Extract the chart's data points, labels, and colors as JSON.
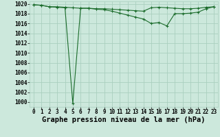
{
  "hours": [
    0,
    1,
    2,
    3,
    4,
    5,
    6,
    7,
    8,
    9,
    10,
    11,
    12,
    13,
    14,
    15,
    16,
    17,
    18,
    19,
    20,
    21,
    22,
    23
  ],
  "line1": [
    1019.8,
    1019.7,
    1019.4,
    1019.4,
    1019.3,
    1019.2,
    1019.1,
    1019.1,
    1019.0,
    1019.0,
    1018.9,
    1018.8,
    1018.7,
    1018.6,
    1018.5,
    1019.2,
    1019.3,
    1019.2,
    1019.1,
    1019.0,
    1019.0,
    1019.1,
    1019.3,
    1019.4
  ],
  "line2": [
    1019.8,
    1019.7,
    1019.4,
    1019.3,
    1019.2,
    999.7,
    1019.1,
    1019.1,
    1018.9,
    1018.8,
    1018.5,
    1018.1,
    1017.7,
    1017.3,
    1016.9,
    1016.0,
    1016.2,
    1015.5,
    1018.0,
    1018.0,
    1018.1,
    1018.3,
    1019.0,
    1019.4
  ],
  "ylim": [
    999,
    1020.5
  ],
  "yticks": [
    1000,
    1002,
    1004,
    1006,
    1008,
    1010,
    1012,
    1014,
    1016,
    1018,
    1020
  ],
  "ytick_labels": [
    "1000",
    "1002",
    "1004",
    "1006",
    "1008",
    "1010",
    "1012",
    "1014",
    "1016",
    "1018",
    "1020"
  ],
  "bg_color": "#cce8dc",
  "grid_color": "#aacfbf",
  "line_color": "#1a6b2a",
  "xlabel": "Graphe pression niveau de la mer (hPa)",
  "xlabel_fontsize": 7.5,
  "tick_fontsize": 5.5,
  "marker": "+"
}
